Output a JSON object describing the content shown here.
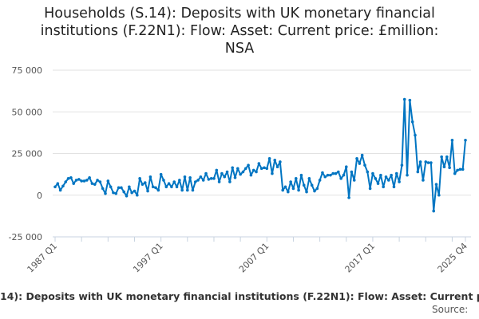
{
  "chart_data": {
    "type": "line",
    "title": "Households (S.14): Deposits with UK monetary financial institutions (F.22N1): Flow: Asset: Current price: £million: NSA",
    "title_lines": [
      "Households (S.14): Deposits with UK monetary financial",
      "institutions (F.22N1): Flow: Asset: Current price: £million:",
      "NSA"
    ],
    "x_start": "1987 Q1",
    "x_end": "2025 Q4",
    "frequency": "quarterly",
    "x_tick_labels": [
      "1987 Q1",
      "1997 Q1",
      "2007 Q1",
      "2017 Q1",
      "2025 Q4"
    ],
    "y_tick_labels": [
      "75 000",
      "50 000",
      "25 000",
      "0",
      "-25 000"
    ],
    "y_ticks": [
      75000,
      50000,
      25000,
      0,
      -25000
    ],
    "ylim": [
      -25000,
      75000
    ],
    "grid": true,
    "series": [
      {
        "name": "Households (S.14): Deposits with UK monetary financial institutions (F.22N1): Flow: Asset: Current price: £million: NSA",
        "color": "#0075c2",
        "values": [
          5000,
          7000,
          3000,
          5500,
          8000,
          10000,
          10500,
          7000,
          9000,
          9500,
          8500,
          8500,
          9000,
          10500,
          7000,
          6500,
          9000,
          8000,
          4000,
          1000,
          8500,
          5000,
          1500,
          1000,
          4500,
          4500,
          2000,
          -500,
          5000,
          1500,
          2500,
          0,
          10000,
          6500,
          7500,
          2500,
          11000,
          5000,
          4500,
          3000,
          12500,
          9000,
          5000,
          7000,
          5000,
          8000,
          5000,
          9000,
          3000,
          11000,
          3000,
          10500,
          3000,
          8000,
          9000,
          11000,
          9000,
          13000,
          9500,
          10000,
          10000,
          15000,
          8000,
          13000,
          11000,
          14000,
          8000,
          16500,
          10500,
          16000,
          12500,
          14000,
          16000,
          18000,
          12000,
          15000,
          14000,
          19000,
          16000,
          16500,
          16000,
          22000,
          13000,
          21000,
          17000,
          20000,
          3000,
          5000,
          2000,
          8000,
          4000,
          10000,
          3000,
          12000,
          6000,
          2000,
          10000,
          6000,
          2500,
          4000,
          9000,
          13500,
          11000,
          12000,
          12000,
          13000,
          13000,
          14000,
          10000,
          12000,
          17000,
          -1500,
          14000,
          9000,
          22000,
          19000,
          24000,
          18000,
          14000,
          4000,
          13000,
          10000,
          7000,
          12000,
          5000,
          11000,
          9000,
          12000,
          5000,
          13000,
          8000,
          18000,
          57500,
          12000,
          57000,
          44000,
          36000,
          14000,
          20000,
          9000,
          20000,
          19500,
          19500,
          -9500,
          6500,
          0,
          23000,
          17000,
          23000,
          16500,
          33000,
          13000,
          15000,
          15500,
          15500,
          33000
        ]
      }
    ],
    "legend_text": "14): Deposits with UK monetary financial institutions (F.22N1): Flow: Asset: Current p",
    "source_label": "Source:"
  }
}
